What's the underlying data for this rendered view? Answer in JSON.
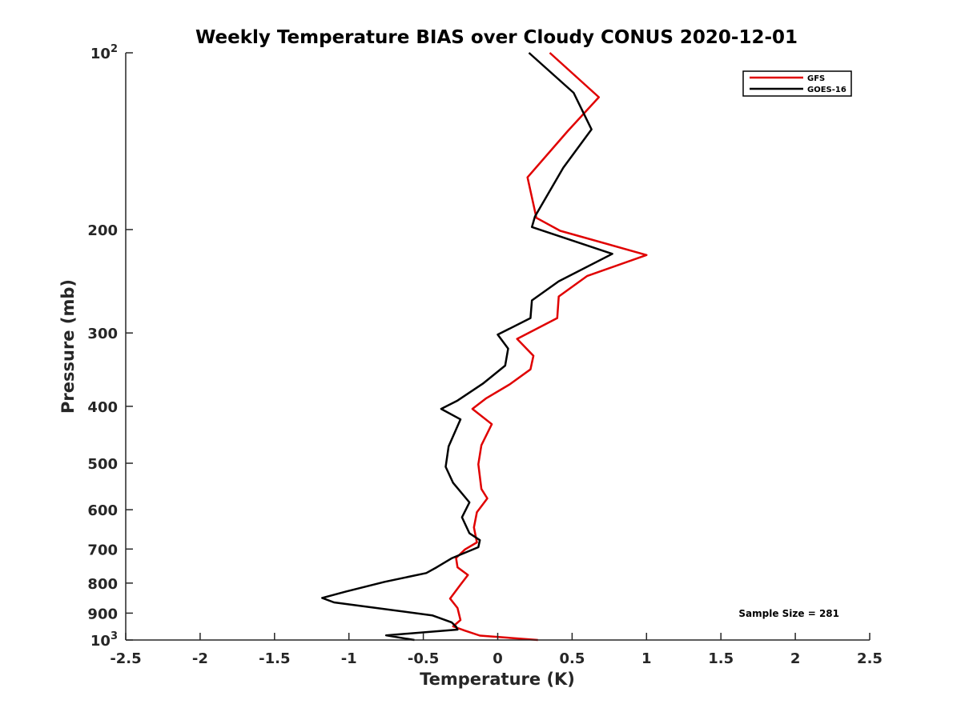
{
  "chart_data": {
    "type": "line",
    "title": "Weekly Temperature BIAS over Cloudy CONUS 2020-12-01",
    "xlabel": "Temperature (K)",
    "ylabel": "Pressure (mb)",
    "xlim": [
      -2.5,
      2.5
    ],
    "ylim": [
      1000,
      100
    ],
    "yscale": "log",
    "y_reversed": true,
    "grid": false,
    "legend_position": "top-right",
    "x_ticks": [
      -2.5,
      -2,
      -1.5,
      -1,
      -0.5,
      0,
      0.5,
      1,
      1.5,
      2,
      2.5
    ],
    "x_tick_labels": [
      "-2.5",
      "-2",
      "-1.5",
      "-1",
      "-0.5",
      "0",
      "0.5",
      "1",
      "1.5",
      "2",
      "2.5"
    ],
    "y_ticks": [
      {
        "value": 100,
        "base": "10",
        "exp": "2"
      },
      {
        "value": 200,
        "label": "200"
      },
      {
        "value": 300,
        "label": "300"
      },
      {
        "value": 400,
        "label": "400"
      },
      {
        "value": 500,
        "label": "500"
      },
      {
        "value": 600,
        "label": "600"
      },
      {
        "value": 700,
        "label": "700"
      },
      {
        "value": 800,
        "label": "800"
      },
      {
        "value": 900,
        "label": "900"
      },
      {
        "value": 1000,
        "base": "10",
        "exp": "3"
      }
    ],
    "annotation": "Sample Size = 281",
    "series": [
      {
        "name": "GFS",
        "color": "#e00000",
        "points": [
          {
            "x": 0.35,
            "y": 100
          },
          {
            "x": 0.68,
            "y": 119
          },
          {
            "x": 0.47,
            "y": 136
          },
          {
            "x": 0.2,
            "y": 163
          },
          {
            "x": 0.26,
            "y": 191
          },
          {
            "x": 0.42,
            "y": 201
          },
          {
            "x": 1.0,
            "y": 221
          },
          {
            "x": 0.6,
            "y": 240
          },
          {
            "x": 0.41,
            "y": 260
          },
          {
            "x": 0.4,
            "y": 283
          },
          {
            "x": 0.13,
            "y": 307
          },
          {
            "x": 0.24,
            "y": 328
          },
          {
            "x": 0.22,
            "y": 346
          },
          {
            "x": 0.08,
            "y": 367
          },
          {
            "x": -0.08,
            "y": 388
          },
          {
            "x": -0.17,
            "y": 404
          },
          {
            "x": -0.04,
            "y": 429
          },
          {
            "x": -0.11,
            "y": 466
          },
          {
            "x": -0.13,
            "y": 502
          },
          {
            "x": -0.11,
            "y": 553
          },
          {
            "x": -0.07,
            "y": 574
          },
          {
            "x": -0.14,
            "y": 606
          },
          {
            "x": -0.16,
            "y": 643
          },
          {
            "x": -0.14,
            "y": 682
          },
          {
            "x": -0.22,
            "y": 701
          },
          {
            "x": -0.28,
            "y": 725
          },
          {
            "x": -0.27,
            "y": 752
          },
          {
            "x": -0.2,
            "y": 775
          },
          {
            "x": -0.25,
            "y": 805
          },
          {
            "x": -0.32,
            "y": 850
          },
          {
            "x": -0.27,
            "y": 882
          },
          {
            "x": -0.25,
            "y": 925
          },
          {
            "x": -0.3,
            "y": 948
          },
          {
            "x": -0.22,
            "y": 964
          },
          {
            "x": -0.12,
            "y": 983
          },
          {
            "x": 0.27,
            "y": 1000
          }
        ]
      },
      {
        "name": "GOES-16",
        "color": "#000000",
        "points": [
          {
            "x": 0.21,
            "y": 100
          },
          {
            "x": 0.51,
            "y": 117
          },
          {
            "x": 0.63,
            "y": 135
          },
          {
            "x": 0.44,
            "y": 157
          },
          {
            "x": 0.25,
            "y": 190
          },
          {
            "x": 0.23,
            "y": 198
          },
          {
            "x": 0.77,
            "y": 220
          },
          {
            "x": 0.41,
            "y": 245
          },
          {
            "x": 0.23,
            "y": 264
          },
          {
            "x": 0.22,
            "y": 283
          },
          {
            "x": 0.0,
            "y": 302
          },
          {
            "x": 0.07,
            "y": 319
          },
          {
            "x": 0.05,
            "y": 341
          },
          {
            "x": -0.1,
            "y": 366
          },
          {
            "x": -0.27,
            "y": 391
          },
          {
            "x": -0.38,
            "y": 404
          },
          {
            "x": -0.25,
            "y": 421
          },
          {
            "x": -0.33,
            "y": 468
          },
          {
            "x": -0.35,
            "y": 507
          },
          {
            "x": -0.3,
            "y": 540
          },
          {
            "x": -0.19,
            "y": 583
          },
          {
            "x": -0.24,
            "y": 618
          },
          {
            "x": -0.19,
            "y": 658
          },
          {
            "x": -0.12,
            "y": 676
          },
          {
            "x": -0.13,
            "y": 695
          },
          {
            "x": -0.31,
            "y": 726
          },
          {
            "x": -0.41,
            "y": 752
          },
          {
            "x": -0.48,
            "y": 769
          },
          {
            "x": -0.76,
            "y": 796
          },
          {
            "x": -1.02,
            "y": 827
          },
          {
            "x": -1.18,
            "y": 848
          },
          {
            "x": -1.1,
            "y": 863
          },
          {
            "x": -0.44,
            "y": 908
          },
          {
            "x": -0.31,
            "y": 933
          },
          {
            "x": -0.28,
            "y": 949
          },
          {
            "x": -0.27,
            "y": 960
          },
          {
            "x": -0.75,
            "y": 982
          },
          {
            "x": -0.56,
            "y": 1000
          }
        ]
      }
    ]
  }
}
